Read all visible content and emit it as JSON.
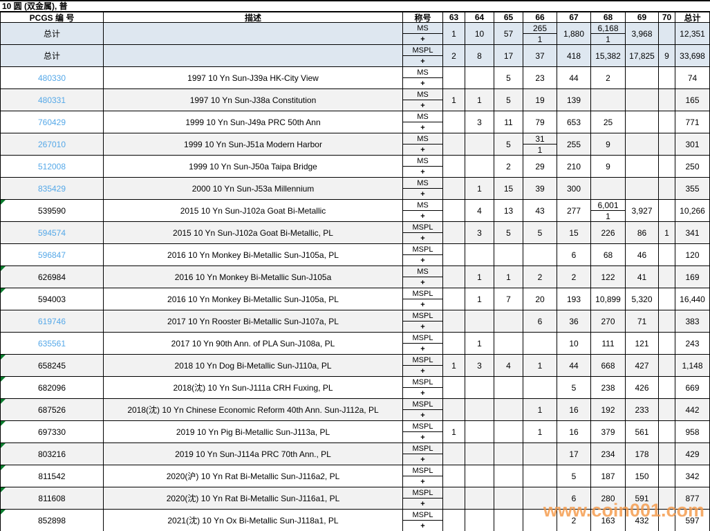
{
  "page_title": "10 圆 (双金属), 普",
  "watermark_text": "www.coin001.com",
  "colors": {
    "link_blue": "#55a8e8",
    "totals_row_bg": "#dee7f0",
    "alt_row_bg": "#f2f2f2",
    "marker_green": "#0b7d2e",
    "watermark_orange": "#f79648"
  },
  "table": {
    "headers": {
      "pcgs": "PCGS 编 号",
      "description": "描述",
      "designation": "称号",
      "grade_columns": [
        "63",
        "64",
        "65",
        "66",
        "67",
        "68",
        "69",
        "70"
      ],
      "total": "总计"
    },
    "rows": [
      {
        "pcgs": "总计",
        "is_link": false,
        "marker": false,
        "is_total": true,
        "description": "",
        "designation": "MS",
        "plus": "+",
        "values": [
          "1",
          "10",
          "57",
          {
            "t": "265",
            "b": "1"
          },
          "1,880",
          {
            "t": "6,168",
            "b": "1"
          },
          "3,968",
          ""
        ],
        "total": "12,351"
      },
      {
        "pcgs": "总计",
        "is_link": false,
        "marker": false,
        "is_total": true,
        "description": "",
        "designation": "MSPL",
        "plus": "+",
        "values": [
          "2",
          "8",
          "17",
          "37",
          "418",
          "15,382",
          "17,825",
          "9"
        ],
        "total": "33,698"
      },
      {
        "pcgs": "480330",
        "is_link": true,
        "marker": false,
        "is_total": false,
        "description": "1997 10 Yn Sun-J39a HK-City View",
        "designation": "MS",
        "plus": "+",
        "values": [
          "",
          "",
          "5",
          "23",
          "44",
          "2",
          "",
          ""
        ],
        "total": "74"
      },
      {
        "pcgs": "480331",
        "is_link": true,
        "marker": false,
        "is_total": false,
        "description": "1997 10 Yn Sun-J38a Constitution",
        "designation": "MS",
        "plus": "+",
        "values": [
          "1",
          "1",
          "5",
          "19",
          "139",
          "",
          "",
          ""
        ],
        "total": "165"
      },
      {
        "pcgs": "760429",
        "is_link": true,
        "marker": false,
        "is_total": false,
        "description": "1999 10 Yn Sun-J49a PRC 50th Ann",
        "designation": "MS",
        "plus": "+",
        "values": [
          "",
          "3",
          "11",
          "79",
          "653",
          "25",
          "",
          ""
        ],
        "total": "771"
      },
      {
        "pcgs": "267010",
        "is_link": true,
        "marker": false,
        "is_total": false,
        "description": "1999 10 Yn Sun-J51a Modern Harbor",
        "designation": "MS",
        "plus": "+",
        "values": [
          "",
          "",
          "5",
          {
            "t": "31",
            "b": "1"
          },
          "255",
          "9",
          "",
          ""
        ],
        "total": "301"
      },
      {
        "pcgs": "512008",
        "is_link": true,
        "marker": false,
        "is_total": false,
        "description": "1999 10 Yn Sun-J50a Taipa Bridge",
        "designation": "MS",
        "plus": "+",
        "values": [
          "",
          "",
          "2",
          "29",
          "210",
          "9",
          "",
          ""
        ],
        "total": "250"
      },
      {
        "pcgs": "835429",
        "is_link": true,
        "marker": false,
        "is_total": false,
        "description": "2000 10 Yn Sun-J53a Millennium",
        "designation": "MS",
        "plus": "+",
        "values": [
          "",
          "1",
          "15",
          "39",
          "300",
          "",
          "",
          ""
        ],
        "total": "355"
      },
      {
        "pcgs": "539590",
        "is_link": false,
        "marker": true,
        "is_total": false,
        "description": "2015 10 Yn Sun-J102a Goat Bi-Metallic",
        "designation": "MS",
        "plus": "+",
        "values": [
          "",
          "4",
          "13",
          "43",
          "277",
          {
            "t": "6,001",
            "b": "1"
          },
          "3,927",
          ""
        ],
        "total": "10,266"
      },
      {
        "pcgs": "594574",
        "is_link": true,
        "marker": false,
        "is_total": false,
        "description": "2015 10 Yn Sun-J102a Goat Bi-Metallic, PL",
        "designation": "MSPL",
        "plus": "+",
        "values": [
          "",
          "3",
          "5",
          "5",
          "15",
          "226",
          "86",
          "1"
        ],
        "total": "341"
      },
      {
        "pcgs": "596847",
        "is_link": true,
        "marker": false,
        "is_total": false,
        "description": "2016 10 Yn Monkey Bi-Metallic Sun-J105a, PL",
        "designation": "MSPL",
        "plus": "+",
        "values": [
          "",
          "",
          "",
          "",
          "6",
          "68",
          "46",
          ""
        ],
        "total": "120"
      },
      {
        "pcgs": "626984",
        "is_link": false,
        "marker": true,
        "is_total": false,
        "description": "2016 10 Yn Monkey Bi-Metallic Sun-J105a",
        "designation": "MS",
        "plus": "+",
        "values": [
          "",
          "1",
          "1",
          "2",
          "2",
          "122",
          "41",
          ""
        ],
        "total": "169"
      },
      {
        "pcgs": "594003",
        "is_link": false,
        "marker": true,
        "is_total": false,
        "description": "2016 10 Yn Monkey Bi-Metallic Sun-J105a, PL",
        "designation": "MSPL",
        "plus": "+",
        "values": [
          "",
          "1",
          "7",
          "20",
          "193",
          "10,899",
          "5,320",
          ""
        ],
        "total": "16,440"
      },
      {
        "pcgs": "619746",
        "is_link": true,
        "marker": false,
        "is_total": false,
        "description": "2017 10 Yn Rooster Bi-Metallic Sun-J107a, PL",
        "designation": "MSPL",
        "plus": "+",
        "values": [
          "",
          "",
          "",
          "6",
          "36",
          "270",
          "71",
          ""
        ],
        "total": "383"
      },
      {
        "pcgs": "635561",
        "is_link": true,
        "marker": false,
        "is_total": false,
        "description": "2017 10 Yn 90th Ann. of PLA Sun-J108a, PL",
        "designation": "MSPL",
        "plus": "+",
        "values": [
          "",
          "1",
          "",
          "",
          "10",
          "111",
          "121",
          ""
        ],
        "total": "243"
      },
      {
        "pcgs": "658245",
        "is_link": false,
        "marker": true,
        "is_total": false,
        "description": "2018 10 Yn Dog Bi-Metallic Sun-J110a, PL",
        "designation": "MSPL",
        "plus": "+",
        "values": [
          "1",
          "3",
          "4",
          "1",
          "44",
          "668",
          "427",
          ""
        ],
        "total": "1,148"
      },
      {
        "pcgs": "682096",
        "is_link": false,
        "marker": true,
        "is_total": false,
        "description": "2018(沈) 10 Yn Sun-J111a CRH Fuxing, PL",
        "designation": "MSPL",
        "plus": "+",
        "values": [
          "",
          "",
          "",
          "",
          "5",
          "238",
          "426",
          ""
        ],
        "total": "669"
      },
      {
        "pcgs": "687526",
        "is_link": false,
        "marker": true,
        "is_total": false,
        "description": "2018(沈) 10 Yn Chinese Economic Reform 40th Ann. Sun-J112a, PL",
        "designation": "MSPL",
        "plus": "+",
        "values": [
          "",
          "",
          "",
          "1",
          "16",
          "192",
          "233",
          ""
        ],
        "total": "442"
      },
      {
        "pcgs": "697330",
        "is_link": false,
        "marker": true,
        "is_total": false,
        "description": "2019 10 Yn Pig Bi-Metallic Sun-J113a, PL",
        "designation": "MSPL",
        "plus": "+",
        "values": [
          "1",
          "",
          "",
          "1",
          "16",
          "379",
          "561",
          ""
        ],
        "total": "958"
      },
      {
        "pcgs": "803216",
        "is_link": false,
        "marker": true,
        "is_total": false,
        "description": "2019 10 Yn Sun-J114a PRC 70th Ann., PL",
        "designation": "MSPL",
        "plus": "+",
        "values": [
          "",
          "",
          "",
          "",
          "17",
          "234",
          "178",
          ""
        ],
        "total": "429"
      },
      {
        "pcgs": "811542",
        "is_link": false,
        "marker": true,
        "is_total": false,
        "description": "2020(沪) 10 Yn Rat Bi-Metallic Sun-J116a2, PL",
        "designation": "MSPL",
        "plus": "+",
        "values": [
          "",
          "",
          "",
          "",
          "5",
          "187",
          "150",
          ""
        ],
        "total": "342"
      },
      {
        "pcgs": "811608",
        "is_link": false,
        "marker": true,
        "is_total": false,
        "description": "2020(沈) 10 Yn Rat Bi-Metallic Sun-J116a1, PL",
        "designation": "MSPL",
        "plus": "+",
        "values": [
          "",
          "",
          "",
          "",
          "6",
          "280",
          "591",
          ""
        ],
        "total": "877"
      },
      {
        "pcgs": "852898",
        "is_link": false,
        "marker": true,
        "is_total": false,
        "description": "2021(沈) 10 Yn Ox Bi-Metallic Sun-J118a1, PL",
        "designation": "MSPL",
        "plus": "+",
        "values": [
          "",
          "",
          "",
          "",
          "2",
          "163",
          "432",
          ""
        ],
        "total": "597"
      }
    ]
  }
}
